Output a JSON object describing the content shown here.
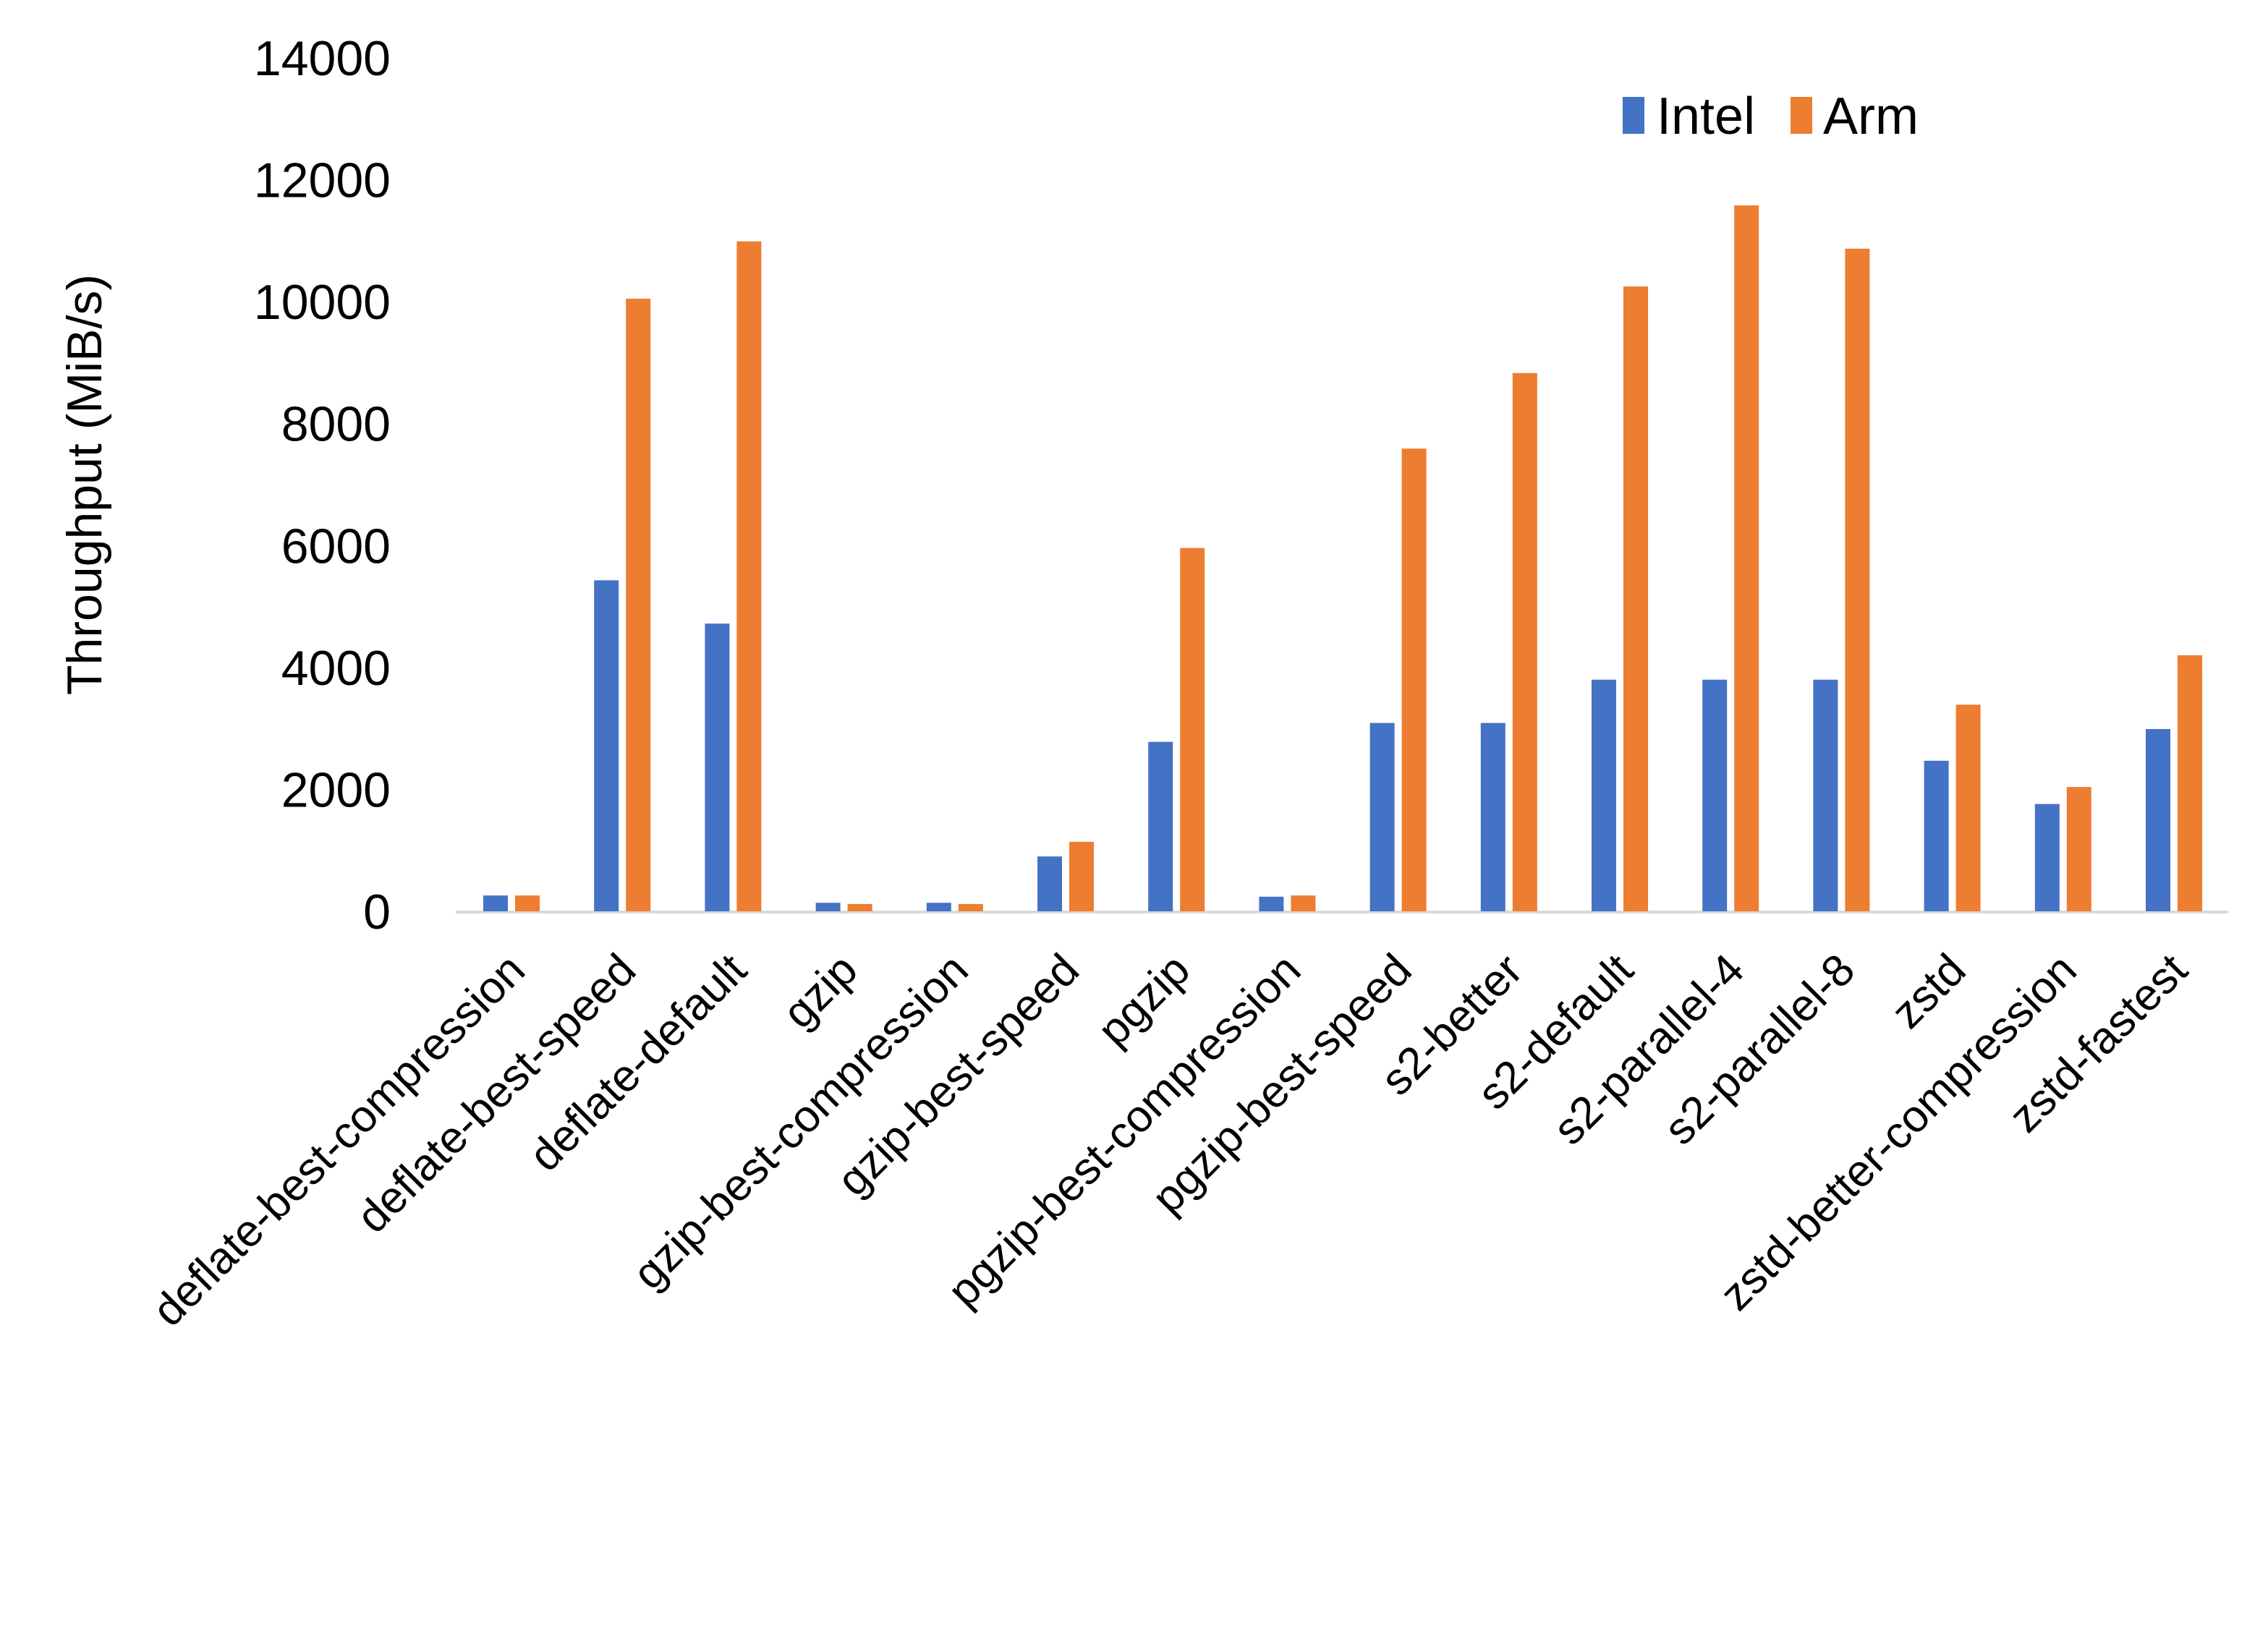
{
  "chart_data": {
    "type": "bar",
    "title": "",
    "xlabel": "",
    "ylabel": "Throughput (MiB/s)",
    "ylim": [
      0,
      14000
    ],
    "yticks": [
      0,
      2000,
      4000,
      6000,
      8000,
      10000,
      12000,
      14000
    ],
    "grid": false,
    "legend_position": "top-right",
    "categories": [
      "deflate-best-compression",
      "deflate-best-speed",
      "deflate-default",
      "gzip",
      "gzip-best-compression",
      "gzip-best-speed",
      "pgzip",
      "pgzip-best-compression",
      "pgzip-best-speed",
      "s2-better",
      "s2-default",
      "s2-parallel-4",
      "s2-parallel-8",
      "zstd",
      "zstd-better-compression",
      "zstd-fastest"
    ],
    "series": [
      {
        "name": "Intel",
        "color": "#4472C4",
        "values": [
          260,
          5430,
          4720,
          140,
          140,
          900,
          2780,
          240,
          3090,
          3090,
          3800,
          3800,
          3800,
          2470,
          1760,
          2990
        ]
      },
      {
        "name": "Arm",
        "color": "#ED7D31",
        "values": [
          260,
          10050,
          10990,
          120,
          120,
          1140,
          5960,
          260,
          7590,
          8830,
          10250,
          11580,
          10870,
          3390,
          2040,
          4200
        ]
      }
    ]
  }
}
